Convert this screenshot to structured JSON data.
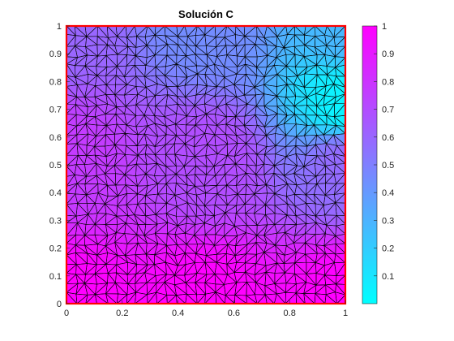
{
  "chart_data": {
    "type": "heatmap",
    "title": "Solución C",
    "xlabel": "",
    "ylabel": "",
    "xlim": [
      0,
      1
    ],
    "ylim": [
      0,
      1
    ],
    "x_ticks": [
      "0",
      "0.2",
      "0.4",
      "0.6",
      "0.8",
      "1"
    ],
    "y_ticks": [
      "0",
      "0.1",
      "0.2",
      "0.3",
      "0.4",
      "0.5",
      "0.6",
      "0.7",
      "0.8",
      "0.9",
      "1"
    ],
    "colorbar": {
      "ticks": [
        "0.1",
        "0.2",
        "0.3",
        "0.4",
        "0.5",
        "0.6",
        "0.7",
        "0.8",
        "0.9",
        "1"
      ],
      "range": [
        0,
        1
      ],
      "colormap": "cool",
      "color_low": "#00ffff",
      "color_high": "#ff00ff"
    },
    "field_samples": [
      {
        "x": 0.0,
        "y": 0.0,
        "c": 1.0
      },
      {
        "x": 0.5,
        "y": 0.0,
        "c": 1.0
      },
      {
        "x": 1.0,
        "y": 0.0,
        "c": 1.0
      },
      {
        "x": 0.0,
        "y": 0.5,
        "c": 0.77
      },
      {
        "x": 0.5,
        "y": 0.5,
        "c": 0.7
      },
      {
        "x": 1.0,
        "y": 0.5,
        "c": 0.58
      },
      {
        "x": 0.0,
        "y": 1.0,
        "c": 0.6
      },
      {
        "x": 0.5,
        "y": 1.0,
        "c": 0.45
      },
      {
        "x": 1.0,
        "y": 1.0,
        "c": 0.28
      },
      {
        "x": 1.0,
        "y": 0.72,
        "c": 0.05
      }
    ],
    "mesh": "unstructured triangular mesh",
    "boundary_color": "#ff0000",
    "grid": false,
    "legend": "none"
  }
}
